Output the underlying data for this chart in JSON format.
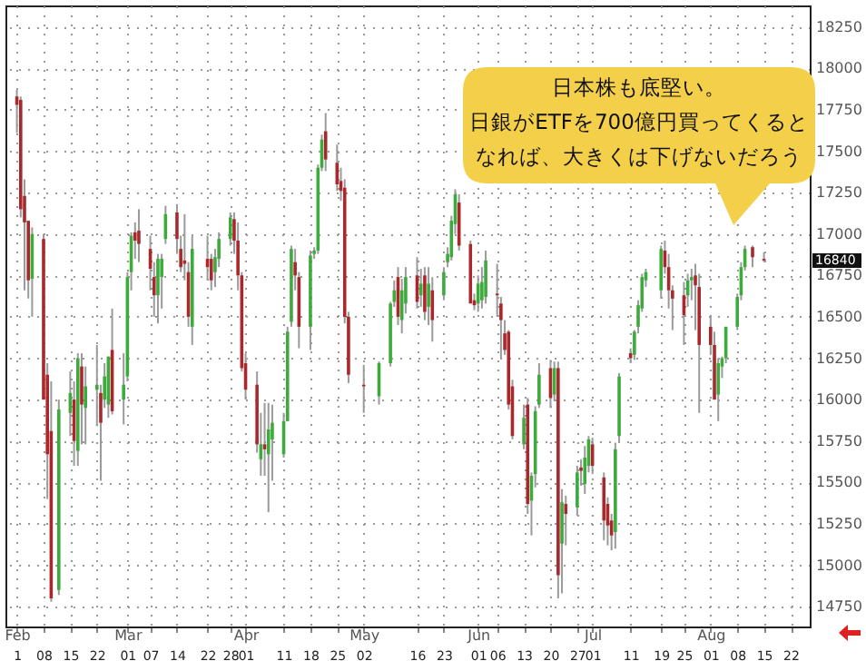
{
  "chart_data": {
    "type": "candlestick",
    "annotations": [
      "日本株も底堅い。",
      "日銀がETFを700億円買ってくると",
      "なれば、大きくは下げないだろう",
      "16840"
    ],
    "x2lim": [
      "--01-29",
      "--08-27"
    ],
    "x2ticks": [
      {
        "value": "--02-01",
        "label": "Feb"
      },
      {
        "value": "--03-01",
        "label": "Mar"
      },
      {
        "value": "--04-01",
        "label": "Apr"
      },
      {
        "value": "--05-02",
        "label": "May"
      },
      {
        "value": "--06-01",
        "label": "Jun"
      },
      {
        "value": "--07-01",
        "label": "Jul"
      },
      {
        "value": "--08-01",
        "label": "Aug"
      }
    ],
    "x": [
      "--02-01",
      "--02-02",
      "--02-03",
      "--02-04",
      "--02-05",
      "--02-08",
      "--02-09",
      "--02-10",
      "--02-12",
      "--02-15",
      "--02-16",
      "--02-17",
      "--02-18",
      "--02-19",
      "--02-22",
      "--02-23",
      "--02-24",
      "--02-25",
      "--02-26",
      "--02-29",
      "--03-01",
      "--03-02",
      "--03-03",
      "--03-04",
      "--03-07",
      "--03-08",
      "--03-09",
      "--03-10",
      "--03-11",
      "--03-14",
      "--03-15",
      "--03-16",
      "--03-17",
      "--03-18",
      "--03-22",
      "--03-23",
      "--03-24",
      "--03-25",
      "--03-28",
      "--03-29",
      "--03-30",
      "--03-31",
      "--04-01",
      "--04-04",
      "--04-05",
      "--04-06",
      "--04-07",
      "--04-08",
      "--04-11",
      "--04-12",
      "--04-13",
      "--04-14",
      "--04-15",
      "--04-18",
      "--04-19",
      "--04-20",
      "--04-21",
      "--04-22",
      "--04-25",
      "--04-26",
      "--04-27",
      "--04-28",
      "--05-02",
      "--05-06",
      "--05-09",
      "--05-10",
      "--05-11",
      "--05-12",
      "--05-13",
      "--05-16",
      "--05-17",
      "--05-18",
      "--05-19",
      "--05-20",
      "--05-23",
      "--05-24",
      "--05-25",
      "--05-26",
      "--05-27",
      "--05-30",
      "--05-31",
      "--06-01",
      "--06-02",
      "--06-03",
      "--06-06",
      "--06-07",
      "--06-08",
      "--06-09",
      "--06-10",
      "--06-13",
      "--06-14",
      "--06-15",
      "--06-16",
      "--06-17",
      "--06-20",
      "--06-21",
      "--06-22",
      "--06-23",
      "--06-24",
      "--06-27",
      "--06-28",
      "--06-29",
      "--06-30",
      "--07-01",
      "--07-04",
      "--07-05",
      "--07-06",
      "--07-07",
      "--07-08",
      "--07-11",
      "--07-12",
      "--07-13",
      "--07-14",
      "--07-15",
      "--07-19",
      "--07-20",
      "--07-21",
      "--07-22",
      "--07-25",
      "--07-26",
      "--07-27",
      "--07-28",
      "--07-29",
      "--08-01",
      "--08-02",
      "--08-03",
      "--08-04",
      "--08-05",
      "--08-08",
      "--08-09",
      "--08-10",
      "--08-12",
      "--08-15"
    ],
    "ohlc": [
      [
        17830,
        17870,
        17610,
        17780
      ],
      [
        17810,
        17830,
        17100,
        17150
      ],
      [
        17230,
        17330,
        16660,
        17070
      ],
      [
        17080,
        17080,
        16610,
        16720
      ],
      [
        16730,
        17040,
        16500,
        17000
      ],
      [
        16970,
        17000,
        16000,
        16000
      ],
      [
        16150,
        16220,
        15400,
        15670
      ],
      [
        15810,
        16110,
        14780,
        14800
      ],
      [
        14850,
        16000,
        14820,
        15940
      ],
      [
        15920,
        16170,
        15780,
        16040
      ],
      [
        16000,
        16110,
        15600,
        15750
      ],
      [
        15690,
        16280,
        15600,
        16250
      ],
      [
        16200,
        16280,
        15730,
        15970
      ],
      [
        15950,
        16200,
        15730,
        16080
      ],
      [
        16060,
        16330,
        15840,
        16090
      ],
      [
        16040,
        16090,
        15510,
        15860
      ],
      [
        16000,
        16220,
        15950,
        16140
      ],
      [
        15970,
        16260,
        15890,
        16260
      ],
      [
        16300,
        16550,
        15910,
        15930
      ],
      [
        16000,
        16280,
        15850,
        16090
      ],
      [
        16140,
        16770,
        16110,
        16740
      ],
      [
        16770,
        17010,
        16660,
        16990
      ],
      [
        17010,
        17070,
        16850,
        16960
      ],
      [
        17020,
        17150,
        16830,
        16940
      ],
      [
        16910,
        16990,
        16660,
        16790
      ],
      [
        16740,
        16830,
        16500,
        16630
      ],
      [
        16630,
        16880,
        16460,
        16850
      ],
      [
        16740,
        16880,
        16550,
        16850
      ],
      [
        16970,
        17170,
        16940,
        17120
      ],
      [
        17130,
        17180,
        16880,
        16970
      ],
      [
        16910,
        16990,
        16770,
        16800
      ],
      [
        16840,
        17120,
        16720,
        16820
      ],
      [
        16770,
        16830,
        16440,
        16500
      ],
      [
        16440,
        16990,
        16330,
        16910
      ],
      [
        16850,
        16990,
        16720,
        16800
      ],
      [
        16850,
        16880,
        16660,
        16720
      ],
      [
        16770,
        16910,
        16680,
        16860
      ],
      [
        16850,
        17010,
        16800,
        16970
      ],
      [
        16970,
        17130,
        16930,
        17100
      ],
      [
        17090,
        17130,
        16880,
        16960
      ],
      [
        16960,
        17070,
        16660,
        16750
      ],
      [
        16750,
        16770,
        16170,
        16190
      ],
      [
        16220,
        16280,
        16000,
        16060
      ],
      [
        16090,
        16170,
        15680,
        15730
      ],
      [
        15640,
        15920,
        15540,
        15730
      ],
      [
        15730,
        15980,
        15540,
        15700
      ],
      [
        15670,
        15980,
        15320,
        15820
      ],
      [
        15760,
        15970,
        15510,
        15860
      ],
      [
        15670,
        15920,
        15650,
        15870
      ],
      [
        15870,
        16440,
        15870,
        16410
      ],
      [
        16470,
        16930,
        16440,
        16910
      ],
      [
        16830,
        16910,
        16660,
        16750
      ],
      [
        16740,
        16770,
        16310,
        16440
      ],
      [
        16440,
        16900,
        16300,
        16870
      ],
      [
        16880,
        16920,
        16850,
        16900
      ],
      [
        16900,
        17420,
        16880,
        17400
      ],
      [
        17400,
        17600,
        17380,
        17570
      ],
      [
        17620,
        17730,
        17380,
        17450
      ],
      [
        17430,
        17540,
        17260,
        17300
      ],
      [
        17320,
        17400,
        17200,
        17260
      ],
      [
        17280,
        17330,
        16460,
        16500
      ],
      [
        16500,
        16530,
        16100,
        16150
      ],
      [
        16090,
        16210,
        15920,
        16080
      ],
      [
        16020,
        16230,
        15970,
        16220
      ],
      [
        16220,
        16590,
        16200,
        16580
      ],
      [
        16590,
        16720,
        16560,
        16660
      ],
      [
        16740,
        16800,
        16450,
        16500
      ],
      [
        16480,
        16730,
        16400,
        16660
      ],
      [
        16580,
        16800,
        16520,
        16740
      ],
      [
        16750,
        16860,
        16550,
        16590
      ],
      [
        16630,
        16790,
        16560,
        16700
      ],
      [
        16750,
        16800,
        16480,
        16530
      ],
      [
        16560,
        16800,
        16450,
        16700
      ],
      [
        16660,
        16740,
        16350,
        16480
      ],
      [
        16630,
        16800,
        16600,
        16770
      ],
      [
        16830,
        16920,
        16800,
        16880
      ],
      [
        16860,
        17110,
        16840,
        17080
      ],
      [
        17060,
        17270,
        17000,
        17240
      ],
      [
        17190,
        17240,
        16900,
        16930
      ],
      [
        16940,
        16960,
        16580,
        16580
      ],
      [
        16600,
        16640,
        16540,
        16570
      ],
      [
        16580,
        16750,
        16530,
        16700
      ],
      [
        16600,
        16800,
        16550,
        16710
      ],
      [
        16620,
        16900,
        16580,
        16840
      ],
      [
        16640,
        16820,
        16500,
        16630
      ],
      [
        16580,
        16620,
        16250,
        16480
      ],
      [
        16400,
        16480,
        16270,
        16300
      ],
      [
        16410,
        16420,
        15940,
        15970
      ],
      [
        16080,
        16120,
        15760,
        15780
      ],
      [
        15730,
        15970,
        15700,
        15890
      ],
      [
        15970,
        16010,
        15310,
        15370
      ],
      [
        15390,
        15560,
        15180,
        15540
      ],
      [
        15550,
        15960,
        15470,
        15930
      ],
      [
        15970,
        16220,
        15950,
        16150
      ],
      [
        16190,
        16240,
        15950,
        16010
      ],
      [
        16030,
        16230,
        15990,
        16190
      ],
      [
        16190,
        16230,
        14800,
        14940
      ],
      [
        15130,
        15460,
        14830,
        15380
      ],
      [
        15370,
        15420,
        15120,
        15310
      ],
      [
        15350,
        15600,
        15300,
        15560
      ],
      [
        15590,
        15640,
        15480,
        15570
      ],
      [
        15490,
        15720,
        15430,
        15650
      ],
      [
        15600,
        15780,
        15560,
        15760
      ],
      [
        15730,
        15770,
        15550,
        15600
      ],
      [
        15530,
        15560,
        15150,
        15270
      ],
      [
        15370,
        15410,
        15120,
        15240
      ],
      [
        15270,
        15310,
        15090,
        15180
      ],
      [
        15200,
        15740,
        15100,
        15700
      ],
      [
        15780,
        16160,
        15740,
        16140
      ],
      [
        16280,
        16310,
        16220,
        16250
      ],
      [
        16270,
        16420,
        16240,
        16410
      ],
      [
        16440,
        16600,
        16400,
        16570
      ],
      [
        16550,
        16760,
        16530,
        16740
      ],
      [
        16720,
        16790,
        16680,
        16770
      ],
      [
        16660,
        16930,
        16610,
        16910
      ],
      [
        16900,
        16960,
        16760,
        16800
      ],
      [
        16800,
        16880,
        16550,
        16660
      ],
      [
        16660,
        16690,
        16420,
        16610
      ],
      [
        16630,
        16710,
        16330,
        16510
      ],
      [
        16630,
        16760,
        16560,
        16720
      ],
      [
        16720,
        16790,
        16600,
        16740
      ],
      [
        16750,
        16820,
        16420,
        16690
      ],
      [
        16680,
        16760,
        15920,
        16330
      ],
      [
        16440,
        16500,
        16270,
        16330
      ],
      [
        16330,
        16410,
        16000,
        16000
      ],
      [
        16030,
        16250,
        15870,
        16220
      ],
      [
        16200,
        16260,
        16130,
        16250
      ],
      [
        16250,
        16440,
        16220,
        16440
      ],
      [
        16440,
        16640,
        16420,
        16620
      ],
      [
        16630,
        16830,
        16600,
        16800
      ],
      [
        16800,
        16930,
        16780,
        16910
      ],
      [
        16920,
        16930,
        16800,
        16860
      ],
      [
        16850,
        16890,
        16830,
        16840
      ]
    ],
    "colors": [
      "#a8282c",
      "#a8282c",
      "#a8282c",
      "#a8282c",
      "#3cab3c",
      "#a8282c",
      "#a8282c",
      "#a8282c",
      "#3cab3c",
      "#3cab3c",
      "#a8282c",
      "#3cab3c",
      "#a8282c",
      "#3cab3c",
      "#3cab3c",
      "#a8282c",
      "#3cab3c",
      "#3cab3c",
      "#a8282c",
      "#3cab3c",
      "#3cab3c",
      "#3cab3c",
      "#a8282c",
      "#a8282c",
      "#a8282c",
      "#a8282c",
      "#3cab3c",
      "#3cab3c",
      "#3cab3c",
      "#a8282c",
      "#a8282c",
      "#a8282c",
      "#a8282c",
      "#3cab3c",
      "#a8282c",
      "#a8282c",
      "#3cab3c",
      "#3cab3c",
      "#3cab3c",
      "#a8282c",
      "#a8282c",
      "#a8282c",
      "#a8282c",
      "#a8282c",
      "#3cab3c",
      "#a8282c",
      "#3cab3c",
      "#3cab3c",
      "#3cab3c",
      "#3cab3c",
      "#3cab3c",
      "#a8282c",
      "#a8282c",
      "#3cab3c",
      "#3cab3c",
      "#3cab3c",
      "#3cab3c",
      "#a8282c",
      "#a8282c",
      "#a8282c",
      "#a8282c",
      "#a8282c",
      "#a8282c",
      "#3cab3c",
      "#3cab3c",
      "#3cab3c",
      "#a8282c",
      "#3cab3c",
      "#3cab3c",
      "#a8282c",
      "#3cab3c",
      "#a8282c",
      "#3cab3c",
      "#a8282c",
      "#3cab3c",
      "#3cab3c",
      "#3cab3c",
      "#3cab3c",
      "#a8282c",
      "#a8282c",
      "#a8282c",
      "#3cab3c",
      "#3cab3c",
      "#3cab3c",
      "#a8282c",
      "#a8282c",
      "#a8282c",
      "#a8282c",
      "#a8282c",
      "#3cab3c",
      "#a8282c",
      "#3cab3c",
      "#3cab3c",
      "#3cab3c",
      "#a8282c",
      "#3cab3c",
      "#a8282c",
      "#3cab3c",
      "#a8282c",
      "#3cab3c",
      "#a8282c",
      "#3cab3c",
      "#3cab3c",
      "#a8282c",
      "#a8282c",
      "#a8282c",
      "#a8282c",
      "#3cab3c",
      "#3cab3c",
      "#a8282c",
      "#3cab3c",
      "#3cab3c",
      "#3cab3c",
      "#3cab3c",
      "#3cab3c",
      "#a8282c",
      "#a8282c",
      "#a8282c",
      "#a8282c",
      "#3cab3c",
      "#3cab3c",
      "#a8282c",
      "#a8282c",
      "#a8282c",
      "#a8282c",
      "#3cab3c",
      "#3cab3c",
      "#3cab3c",
      "#3cab3c",
      "#3cab3c",
      "#3cab3c",
      "#a8282c",
      "#a8282c"
    ],
    "xlim": [
      "--01-29",
      "--08-27"
    ],
    "xticks": [
      {
        "value": "--02-01",
        "label": "1"
      },
      {
        "value": "--02-08",
        "label": "08"
      },
      {
        "value": "--02-15",
        "label": "15"
      },
      {
        "value": "--02-22",
        "label": "22"
      },
      {
        "value": "--03-01",
        "label": "01"
      },
      {
        "value": "--03-07",
        "label": "07"
      },
      {
        "value": "--03-14",
        "label": "14"
      },
      {
        "value": "--03-22",
        "label": "22"
      },
      {
        "value": "--03-28",
        "label": "28"
      },
      {
        "value": "--04-01",
        "label": "01"
      },
      {
        "value": "--04-11",
        "label": "11"
      },
      {
        "value": "--04-18",
        "label": "18"
      },
      {
        "value": "--04-25",
        "label": "25"
      },
      {
        "value": "--05-02",
        "label": "02"
      },
      {
        "value": "--05-16",
        "label": "16"
      },
      {
        "value": "--05-23",
        "label": "23"
      },
      {
        "value": "--06-01",
        "label": "01"
      },
      {
        "value": "--06-06",
        "label": "06"
      },
      {
        "value": "--06-13",
        "label": "13"
      },
      {
        "value": "--06-20",
        "label": "20"
      },
      {
        "value": "--06-27",
        "label": "27"
      },
      {
        "value": "--07-01",
        "label": "01"
      },
      {
        "value": "--07-11",
        "label": "11"
      },
      {
        "value": "--07-19",
        "label": "19"
      },
      {
        "value": "--07-25",
        "label": "25"
      },
      {
        "value": "--08-01",
        "label": "01"
      },
      {
        "value": "--08-08",
        "label": "08"
      },
      {
        "value": "--08-15",
        "label": "15"
      },
      {
        "value": "--08-22",
        "label": "22"
      }
    ],
    "ylim": [
      14630,
      18380
    ],
    "yticks": [
      14750,
      15000,
      15250,
      15500,
      15750,
      16000,
      16250,
      16500,
      16750,
      17000,
      17250,
      17500,
      17750,
      18000,
      18250
    ],
    "grid": true
  }
}
